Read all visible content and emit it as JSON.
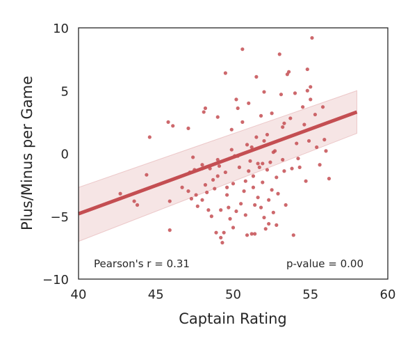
{
  "chart_data": {
    "type": "scatter",
    "title": "",
    "xlabel": "Captain Rating",
    "ylabel": "Plus/Minus per Game",
    "xlim": [
      40,
      60
    ],
    "ylim": [
      -10,
      10
    ],
    "xticks": [
      "40",
      "45",
      "50",
      "55",
      "60"
    ],
    "yticks": [
      "10",
      "5",
      "0",
      "−5",
      "−10"
    ],
    "grid": false,
    "point_color": "#c44e52",
    "regression": {
      "x": [
        40,
        58
      ],
      "y": [
        -4.8,
        3.3
      ],
      "ci_upper": [
        -2.7,
        5.0
      ],
      "ci_lower": [
        -7.0,
        1.6
      ],
      "color": "#c44e52"
    },
    "annotations": {
      "pearson": "Pearson's r = 0.31",
      "pvalue": "p-value = 0.00"
    },
    "points": [
      [
        42.7,
        -3.2
      ],
      [
        43.6,
        -3.8
      ],
      [
        43.8,
        -4.1
      ],
      [
        44.4,
        -1.7
      ],
      [
        44.6,
        1.3
      ],
      [
        45.8,
        2.5
      ],
      [
        45.9,
        -3.8
      ],
      [
        45.9,
        -6.1
      ],
      [
        46.1,
        2.2
      ],
      [
        46.7,
        -2.7
      ],
      [
        47.1,
        2.0
      ],
      [
        47.1,
        -3.0
      ],
      [
        47.2,
        -1.5
      ],
      [
        47.4,
        -0.3
      ],
      [
        47.5,
        -1.3
      ],
      [
        47.6,
        -3.3
      ],
      [
        47.7,
        -4.2
      ],
      [
        48.0,
        -0.9
      ],
      [
        48.0,
        -3.7
      ],
      [
        48.1,
        3.3
      ],
      [
        48.2,
        3.6
      ],
      [
        48.2,
        -2.5
      ],
      [
        48.3,
        -3.1
      ],
      [
        48.4,
        -4.5
      ],
      [
        48.5,
        -1.2
      ],
      [
        48.6,
        -5.0
      ],
      [
        48.7,
        -2.1
      ],
      [
        48.8,
        -2.8
      ],
      [
        48.9,
        -6.3
      ],
      [
        49.0,
        2.9
      ],
      [
        49.0,
        -0.5
      ],
      [
        49.0,
        -1.8
      ],
      [
        49.2,
        -4.5
      ],
      [
        49.2,
        -6.7
      ],
      [
        49.3,
        -7.1
      ],
      [
        49.4,
        -6.3
      ],
      [
        49.5,
        6.4
      ],
      [
        49.5,
        -1.5
      ],
      [
        49.6,
        -3.3
      ],
      [
        49.7,
        -4.3
      ],
      [
        49.8,
        -5.2
      ],
      [
        49.9,
        1.9
      ],
      [
        49.9,
        0.3
      ],
      [
        50.0,
        -2.4
      ],
      [
        50.0,
        -5.9
      ],
      [
        50.2,
        4.3
      ],
      [
        50.2,
        -4.6
      ],
      [
        50.3,
        3.6
      ],
      [
        50.3,
        -0.2
      ],
      [
        50.5,
        -4.0
      ],
      [
        50.6,
        8.3
      ],
      [
        50.6,
        2.5
      ],
      [
        50.7,
        -3.0
      ],
      [
        50.8,
        -2.2
      ],
      [
        50.8,
        -4.9
      ],
      [
        50.9,
        -6.5
      ],
      [
        51.0,
        4.0
      ],
      [
        51.0,
        -1.4
      ],
      [
        51.1,
        -0.6
      ],
      [
        51.2,
        0.5
      ],
      [
        51.3,
        -1.8
      ],
      [
        51.3,
        -2.7
      ],
      [
        51.4,
        -4.1
      ],
      [
        51.4,
        -6.4
      ],
      [
        51.5,
        6.1
      ],
      [
        51.5,
        1.3
      ],
      [
        51.6,
        -0.8
      ],
      [
        51.6,
        -3.5
      ],
      [
        51.7,
        -1.1
      ],
      [
        51.8,
        3.0
      ],
      [
        51.8,
        -4.3
      ],
      [
        51.9,
        -2.3
      ],
      [
        52.0,
        4.9
      ],
      [
        52.0,
        1.0
      ],
      [
        52.0,
        -5.1
      ],
      [
        52.1,
        -6.0
      ],
      [
        52.2,
        1.5
      ],
      [
        52.2,
        -1.3
      ],
      [
        52.3,
        -3.7
      ],
      [
        52.3,
        -5.6
      ],
      [
        52.4,
        -0.7
      ],
      [
        52.5,
        3.2
      ],
      [
        52.5,
        -2.9
      ],
      [
        52.6,
        -4.7
      ],
      [
        52.7,
        0.2
      ],
      [
        52.8,
        -1.9
      ],
      [
        52.8,
        -5.7
      ],
      [
        52.9,
        -3.2
      ],
      [
        53.0,
        7.9
      ],
      [
        53.1,
        4.7
      ],
      [
        53.2,
        2.1
      ],
      [
        53.2,
        -0.5
      ],
      [
        53.3,
        -1.4
      ],
      [
        53.4,
        -4.1
      ],
      [
        53.5,
        6.3
      ],
      [
        53.6,
        6.5
      ],
      [
        53.7,
        2.8
      ],
      [
        53.8,
        -1.2
      ],
      [
        53.9,
        -6.5
      ],
      [
        54.0,
        4.8
      ],
      [
        54.1,
        0.8
      ],
      [
        54.2,
        -0.4
      ],
      [
        54.3,
        -1.1
      ],
      [
        54.5,
        3.7
      ],
      [
        54.6,
        2.3
      ],
      [
        54.7,
        -2.2
      ],
      [
        54.8,
        6.7
      ],
      [
        54.8,
        5.0
      ],
      [
        54.9,
        1.0
      ],
      [
        55.0,
        4.3
      ],
      [
        55.1,
        9.2
      ],
      [
        55.3,
        3.1
      ],
      [
        55.4,
        0.5
      ],
      [
        55.6,
        -0.9
      ],
      [
        55.8,
        3.7
      ],
      [
        55.9,
        1.1
      ],
      [
        56.0,
        0.2
      ],
      [
        56.2,
        -2.0
      ],
      [
        55.0,
        5.3
      ],
      [
        50.4,
        -1.1
      ],
      [
        51.2,
        -6.4
      ],
      [
        49.1,
        -1.0
      ],
      [
        48.0,
        -1.2
      ],
      [
        50.9,
        0.7
      ],
      [
        47.3,
        -3.6
      ],
      [
        50.1,
        -0.2
      ],
      [
        52.6,
        0.1
      ],
      [
        53.3,
        2.4
      ],
      [
        51.9,
        -0.8
      ],
      [
        49.6,
        -2.7
      ]
    ]
  }
}
